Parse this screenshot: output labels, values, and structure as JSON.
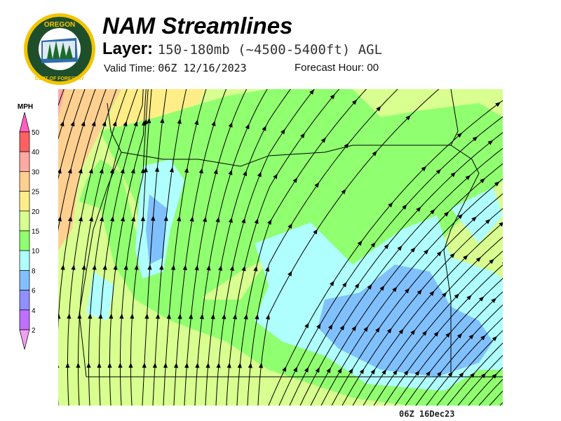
{
  "logo": {
    "text_top": "OREGON",
    "text_bottom": "DEPARTMENT OF FORESTRY"
  },
  "header": {
    "title": "NAM Streamlines",
    "layer_label": "Layer:",
    "layer_value": "150-180mb (~4500-5400ft) AGL",
    "valid_label": "Valid Time:",
    "valid_value": "06Z 12/16/2023",
    "forecast_label": "Forecast Hour:",
    "forecast_value": "00"
  },
  "colorbar": {
    "unit": "MPH",
    "levels": [
      "50",
      "40",
      "30",
      "25",
      "20",
      "15",
      "10",
      "8",
      "6",
      "4",
      "2"
    ],
    "colors": [
      "#ff6060",
      "#ffaaa0",
      "#ffd090",
      "#ffee88",
      "#d8ff90",
      "#90ff70",
      "#b0ffff",
      "#80c0ff",
      "#9090ff",
      "#c070ff"
    ],
    "over_color": "#ff60c0",
    "under_color": "#f0a0f0"
  },
  "footer": {
    "timestamp": "06Z 16Dec23"
  }
}
